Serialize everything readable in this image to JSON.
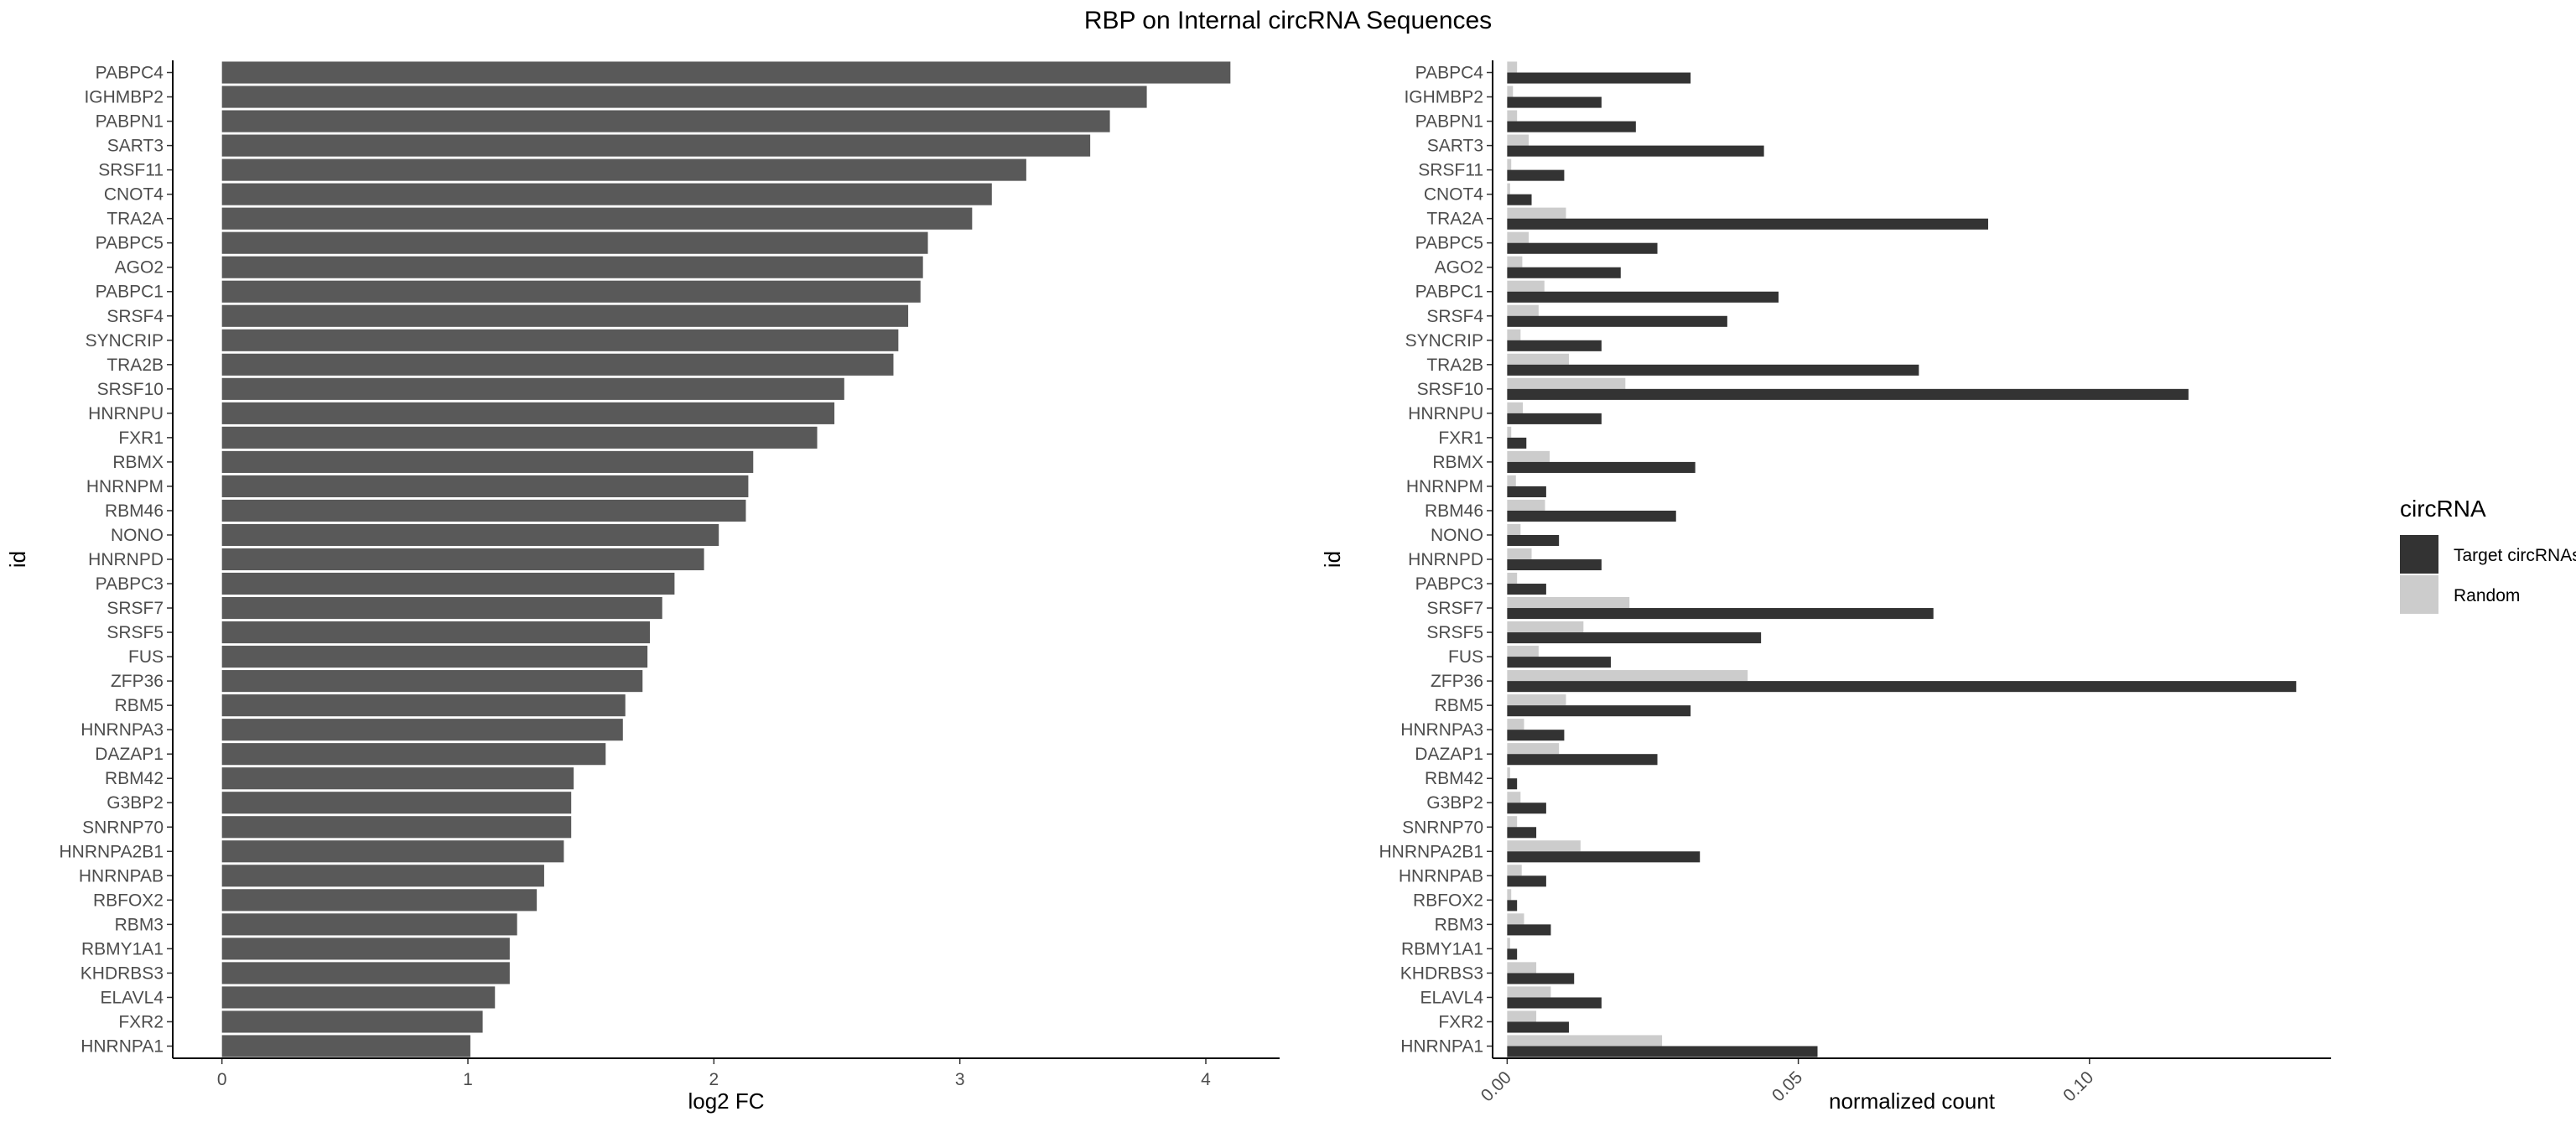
{
  "title": "RBP on Internal circRNA Sequences",
  "chart_data": [
    {
      "type": "bar",
      "orientation": "horizontal",
      "xlabel": "log2 FC",
      "ylabel": "id",
      "xlim": [
        -0.2,
        4.3
      ],
      "xticks": [
        0,
        1,
        2,
        3,
        4
      ],
      "grid": false,
      "categories": [
        "PABPC4",
        "IGHMBP2",
        "PABPN1",
        "SART3",
        "SRSF11",
        "CNOT4",
        "TRA2A",
        "PABPC5",
        "AGO2",
        "PABPC1",
        "SRSF4",
        "SYNCRIP",
        "TRA2B",
        "SRSF10",
        "HNRNPU",
        "FXR1",
        "RBMX",
        "HNRNPM",
        "RBM46",
        "NONO",
        "HNRNPD",
        "PABPC3",
        "SRSF7",
        "SRSF5",
        "FUS",
        "ZFP36",
        "RBM5",
        "HNRNPA3",
        "DAZAP1",
        "RBM42",
        "G3BP2",
        "SNRNP70",
        "HNRNPA2B1",
        "HNRNPAB",
        "RBFOX2",
        "RBM3",
        "RBMY1A1",
        "KHDRBS3",
        "ELAVL4",
        "FXR2",
        "HNRNPA1"
      ],
      "values": [
        4.1,
        3.76,
        3.61,
        3.53,
        3.27,
        3.13,
        3.05,
        2.87,
        2.85,
        2.84,
        2.79,
        2.75,
        2.73,
        2.53,
        2.49,
        2.42,
        2.16,
        2.14,
        2.13,
        2.02,
        1.96,
        1.84,
        1.79,
        1.74,
        1.73,
        1.71,
        1.64,
        1.63,
        1.56,
        1.43,
        1.42,
        1.42,
        1.39,
        1.31,
        1.28,
        1.2,
        1.17,
        1.17,
        1.11,
        1.06,
        1.01
      ],
      "bar_color": "#595959"
    },
    {
      "type": "bar",
      "orientation": "horizontal",
      "grouped": true,
      "xlabel": "normalized count",
      "ylabel": "id",
      "xlim": [
        -0.0025,
        0.1415
      ],
      "xticks": [
        0.0,
        0.05,
        0.1
      ],
      "xtick_labels": [
        "0.00",
        "0.05",
        "0.10"
      ],
      "grid": false,
      "categories": [
        "PABPC4",
        "IGHMBP2",
        "PABPN1",
        "SART3",
        "SRSF11",
        "CNOT4",
        "TRA2A",
        "PABPC5",
        "AGO2",
        "PABPC1",
        "SRSF4",
        "SYNCRIP",
        "TRA2B",
        "SRSF10",
        "HNRNPU",
        "FXR1",
        "RBMX",
        "HNRNPM",
        "RBM46",
        "NONO",
        "HNRNPD",
        "PABPC3",
        "SRSF7",
        "SRSF5",
        "FUS",
        "ZFP36",
        "RBM5",
        "HNRNPA3",
        "DAZAP1",
        "RBM42",
        "G3BP2",
        "SNRNP70",
        "HNRNPA2B1",
        "HNRNPAB",
        "RBFOX2",
        "RBM3",
        "RBMY1A1",
        "KHDRBS3",
        "ELAVL4",
        "FXR2",
        "HNRNPA1"
      ],
      "series": [
        {
          "name": "Target circRNAs",
          "color": "#333333",
          "values": [
            0.0315,
            0.0162,
            0.0221,
            0.0441,
            0.0098,
            0.0042,
            0.0826,
            0.0258,
            0.0195,
            0.0466,
            0.0378,
            0.0162,
            0.0707,
            0.117,
            0.0162,
            0.0033,
            0.0323,
            0.0067,
            0.029,
            0.0089,
            0.0162,
            0.0067,
            0.0732,
            0.0436,
            0.0178,
            0.1355,
            0.0315,
            0.0098,
            0.0258,
            0.0017,
            0.0067,
            0.005,
            0.0331,
            0.0067,
            0.0017,
            0.0075,
            0.0017,
            0.0115,
            0.0162,
            0.0106,
            0.0533
          ]
        },
        {
          "name": "Random",
          "color": "#cccccc",
          "values": [
            0.0017,
            0.001,
            0.0017,
            0.0037,
            0.0007,
            0.0005,
            0.0101,
            0.0037,
            0.0026,
            0.0064,
            0.0054,
            0.0023,
            0.0106,
            0.0203,
            0.0027,
            0.0007,
            0.0073,
            0.0015,
            0.0065,
            0.0023,
            0.0042,
            0.0017,
            0.021,
            0.0131,
            0.0054,
            0.0413,
            0.0101,
            0.0029,
            0.0089,
            0.0005,
            0.0023,
            0.0017,
            0.0126,
            0.0025,
            0.0007,
            0.0029,
            0.0005,
            0.005,
            0.0075,
            0.005,
            0.0266
          ]
        }
      ],
      "legend": {
        "title": "circRNA",
        "position": "right",
        "entries": [
          "Target circRNAs",
          "Random"
        ]
      }
    }
  ]
}
